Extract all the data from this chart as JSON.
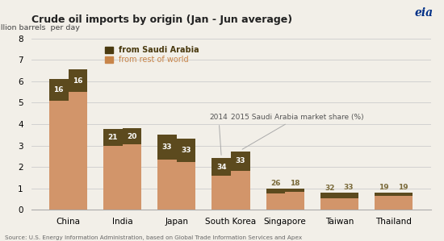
{
  "title": "Crude oil imports by origin (Jan - Jun average)",
  "ylabel": "million barrels  per day",
  "source": "Source: U.S. Energy Information Administration, based on Global Trade Information Services and Apex",
  "categories": [
    "China",
    "India",
    "Japan",
    "South Korea",
    "Singapore",
    "Taiwan",
    "Thailand"
  ],
  "bar_width": 0.35,
  "ylim": [
    0,
    8
  ],
  "yticks": [
    0,
    1,
    2,
    3,
    4,
    5,
    6,
    7,
    8
  ],
  "color_rest": "#D2956A",
  "color_saudi": "#5C4A1E",
  "annotation_color_inside": "#FFFFFF",
  "annotation_color_outside": "#7A6A3A",
  "legend_saudi_color": "#4A3A10",
  "legend_rest_color": "#C8854A",
  "data_2014": {
    "rest": [
      5.1,
      2.97,
      2.33,
      1.58,
      0.74,
      0.54,
      0.65
    ],
    "saudi": [
      1.0,
      0.8,
      1.17,
      0.82,
      0.26,
      0.25,
      0.15
    ],
    "pct": [
      16,
      21,
      33,
      34,
      26,
      32,
      19
    ]
  },
  "data_2015": {
    "rest": [
      5.5,
      3.05,
      2.22,
      1.82,
      0.82,
      0.54,
      0.65
    ],
    "saudi": [
      1.05,
      0.76,
      1.1,
      0.9,
      0.18,
      0.27,
      0.15
    ],
    "pct": [
      16,
      20,
      33,
      33,
      18,
      33,
      19
    ]
  },
  "annotation_2014_label": "2014",
  "annotation_2015_label": "2015 Saudi Arabia market share (%)",
  "background_color": "#F2EFE8",
  "grid_color": "#CCCCCC",
  "title_fontsize": 9,
  "axis_fontsize": 7.5,
  "tick_fontsize": 7.5
}
